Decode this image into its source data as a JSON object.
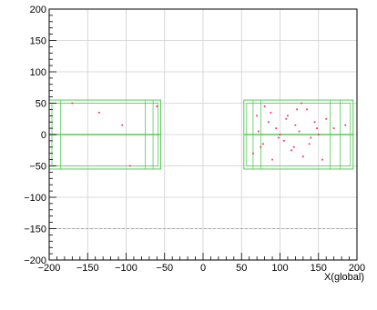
{
  "chart_data": {
    "type": "scatter",
    "title": "",
    "xlabel": "X(global)",
    "ylabel": "",
    "xlim": [
      -200,
      200
    ],
    "ylim": [
      -200,
      200
    ],
    "grid": true,
    "x_ticks": [
      -200,
      -150,
      -100,
      -50,
      0,
      50,
      100,
      150,
      200
    ],
    "y_ticks": [
      -200,
      -150,
      -100,
      -50,
      0,
      50,
      100,
      150,
      200
    ],
    "x_tick_labels": [
      "−200",
      "−150",
      "−100",
      "−50",
      "0",
      "50",
      "100",
      "150",
      "200"
    ],
    "y_tick_labels": [
      "−200",
      "−150",
      "−100",
      "−50",
      "0",
      "50",
      "100",
      "150",
      "200"
    ],
    "colors": {
      "frame": "#000000",
      "grid": "#cfcfcf",
      "detector": "#55cc55",
      "points": "#ff3366",
      "dashed_line": "#999999"
    },
    "detector_boxes": [
      {
        "name": "left-module",
        "x": [
          -200,
          -55
        ],
        "y": [
          -55,
          55
        ],
        "inner_x": [
          -185,
          -75,
          -65
        ],
        "inner_y": [
          -50,
          50
        ],
        "center_y": 0
      },
      {
        "name": "right-module",
        "x": [
          53,
          195
        ],
        "y": [
          -55,
          55
        ],
        "inner_x": [
          65,
          75,
          165,
          178
        ],
        "inner_y": [
          -50,
          50
        ],
        "center_y": 0
      }
    ],
    "dashed_y": -150,
    "series": [
      {
        "name": "",
        "x": [
          -170,
          -135,
          -105,
          -95,
          -60,
          65,
          70,
          75,
          80,
          85,
          90,
          95,
          100,
          105,
          110,
          115,
          120,
          125,
          128,
          130,
          135,
          140,
          145,
          150,
          160,
          170,
          185,
          72,
          78,
          88,
          98,
          108,
          118,
          122,
          138,
          148,
          155
        ],
        "y": [
          50,
          35,
          15,
          -50,
          45,
          -30,
          30,
          -20,
          45,
          20,
          -40,
          10,
          0,
          -10,
          30,
          -25,
          15,
          5,
          50,
          -35,
          40,
          -5,
          20,
          0,
          25,
          10,
          15,
          5,
          -15,
          35,
          -5,
          25,
          -20,
          40,
          -15,
          10,
          -40
        ]
      }
    ]
  }
}
